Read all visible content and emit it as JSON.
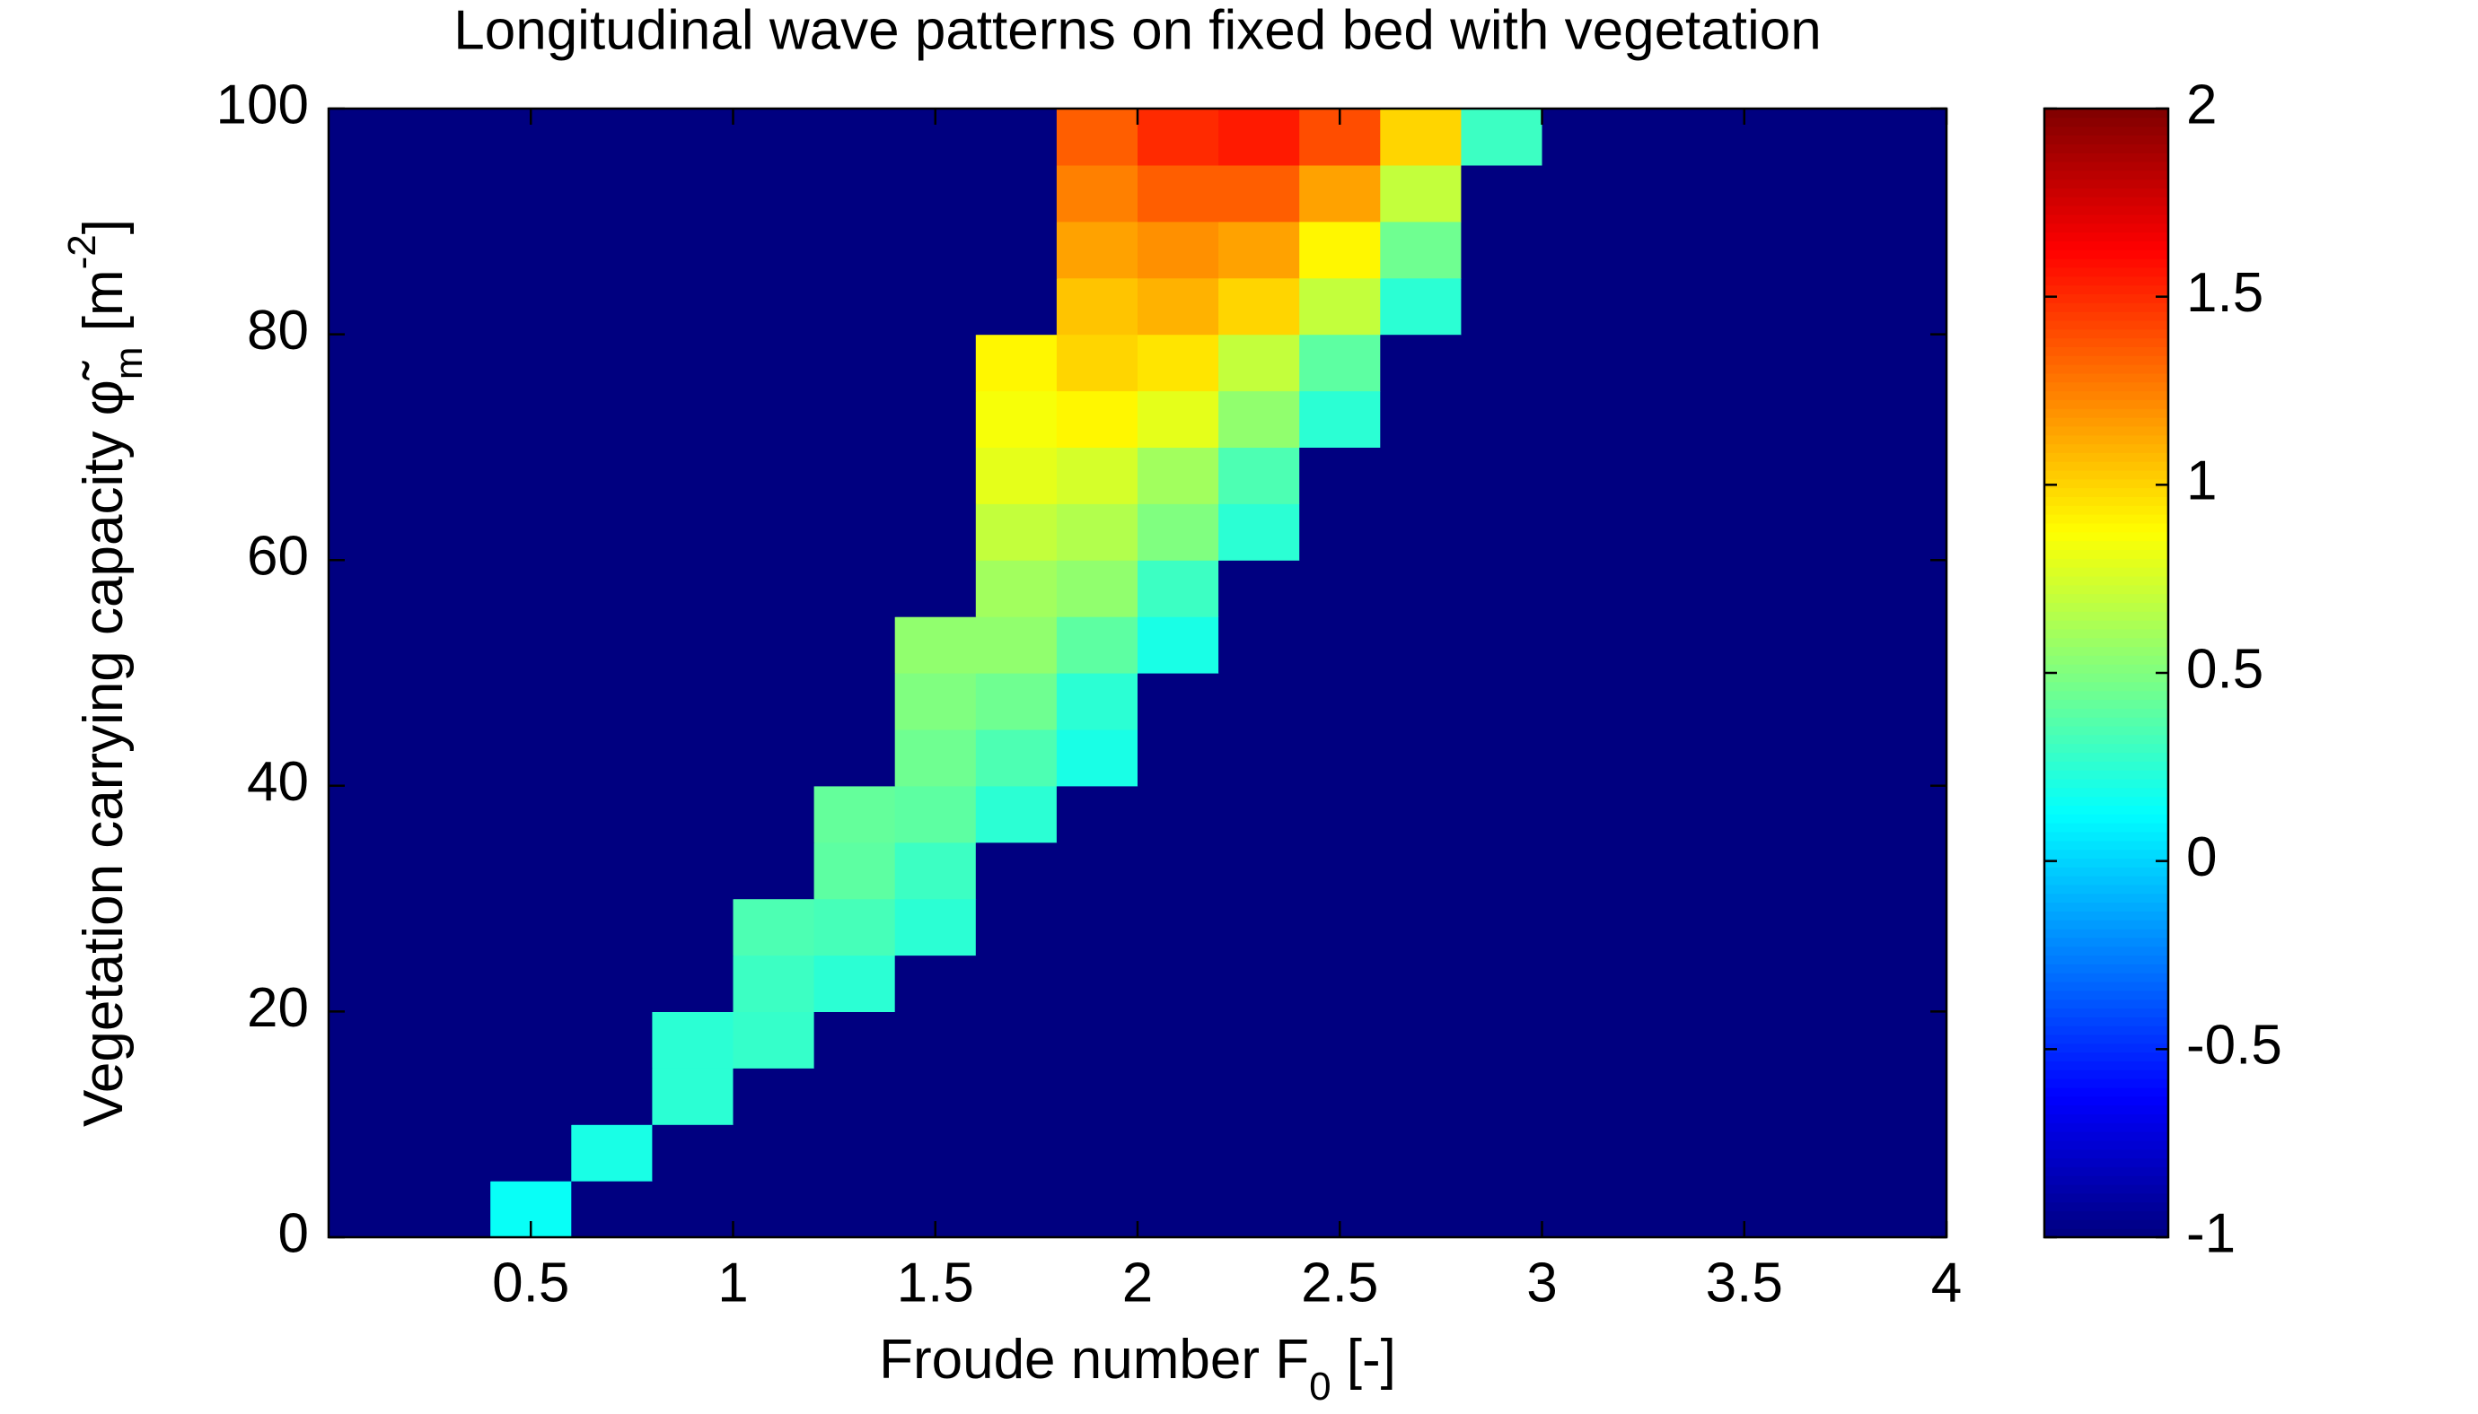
{
  "chart_data": {
    "type": "heatmap",
    "title": "Longitudinal wave patterns on fixed bed with vegetation",
    "xlabel": [
      "Froude number  F",
      "0",
      " [-]"
    ],
    "ylabel": [
      "Vegetation carrying capacity  φ̃",
      "m",
      " [m",
      "-2",
      "]"
    ],
    "x": [
      0.1,
      0.3,
      0.5,
      0.7,
      0.9,
      1.1,
      1.3,
      1.5,
      1.7,
      1.9,
      2.1,
      2.3,
      2.5,
      2.7,
      2.9,
      3.1,
      3.3,
      3.5,
      3.7,
      3.9
    ],
    "y": [
      2.5,
      7.5,
      12.5,
      17.5,
      22.5,
      27.5,
      32.5,
      37.5,
      42.5,
      47.5,
      52.5,
      57.5,
      62.5,
      67.5,
      72.5,
      77.5,
      82.5,
      87.5,
      92.5,
      97.5
    ],
    "z": [
      [
        -1,
        -1,
        0.15,
        -1,
        -1,
        -1,
        -1,
        -1,
        -1,
        -1,
        -1,
        -1,
        -1,
        -1,
        -1,
        -1,
        -1,
        -1,
        -1,
        -1
      ],
      [
        -1,
        -1,
        -1,
        0.2,
        -1,
        -1,
        -1,
        -1,
        -1,
        -1,
        -1,
        -1,
        -1,
        -1,
        -1,
        -1,
        -1,
        -1,
        -1,
        -1
      ],
      [
        -1,
        -1,
        -1,
        -1,
        0.25,
        -1,
        -1,
        -1,
        -1,
        -1,
        -1,
        -1,
        -1,
        -1,
        -1,
        -1,
        -1,
        -1,
        -1,
        -1
      ],
      [
        -1,
        -1,
        -1,
        -1,
        0.25,
        0.28,
        -1,
        -1,
        -1,
        -1,
        -1,
        -1,
        -1,
        -1,
        -1,
        -1,
        -1,
        -1,
        -1,
        -1
      ],
      [
        -1,
        -1,
        -1,
        -1,
        -1,
        0.3,
        0.25,
        -1,
        -1,
        -1,
        -1,
        -1,
        -1,
        -1,
        -1,
        -1,
        -1,
        -1,
        -1,
        -1
      ],
      [
        -1,
        -1,
        -1,
        -1,
        -1,
        0.35,
        0.33,
        0.25,
        -1,
        -1,
        -1,
        -1,
        -1,
        -1,
        -1,
        -1,
        -1,
        -1,
        -1,
        -1
      ],
      [
        -1,
        -1,
        -1,
        -1,
        -1,
        -1,
        0.4,
        0.3,
        -1,
        -1,
        -1,
        -1,
        -1,
        -1,
        -1,
        -1,
        -1,
        -1,
        -1,
        -1
      ],
      [
        -1,
        -1,
        -1,
        -1,
        -1,
        -1,
        0.42,
        0.4,
        0.25,
        -1,
        -1,
        -1,
        -1,
        -1,
        -1,
        -1,
        -1,
        -1,
        -1,
        -1
      ],
      [
        -1,
        -1,
        -1,
        -1,
        -1,
        -1,
        -1,
        0.45,
        0.35,
        0.2,
        -1,
        -1,
        -1,
        -1,
        -1,
        -1,
        -1,
        -1,
        -1,
        -1
      ],
      [
        -1,
        -1,
        -1,
        -1,
        -1,
        -1,
        -1,
        0.5,
        0.45,
        0.25,
        -1,
        -1,
        -1,
        -1,
        -1,
        -1,
        -1,
        -1,
        -1,
        -1
      ],
      [
        -1,
        -1,
        -1,
        -1,
        -1,
        -1,
        -1,
        0.55,
        0.55,
        0.4,
        0.2,
        -1,
        -1,
        -1,
        -1,
        -1,
        -1,
        -1,
        -1,
        -1
      ],
      [
        -1,
        -1,
        -1,
        -1,
        -1,
        -1,
        -1,
        -1,
        0.6,
        0.55,
        0.3,
        -1,
        -1,
        -1,
        -1,
        -1,
        -1,
        -1,
        -1,
        -1
      ],
      [
        -1,
        -1,
        -1,
        -1,
        -1,
        -1,
        -1,
        -1,
        0.7,
        0.65,
        0.5,
        0.25,
        -1,
        -1,
        -1,
        -1,
        -1,
        -1,
        -1,
        -1
      ],
      [
        -1,
        -1,
        -1,
        -1,
        -1,
        -1,
        -1,
        -1,
        0.8,
        0.75,
        0.6,
        0.35,
        -1,
        -1,
        -1,
        -1,
        -1,
        -1,
        -1,
        -1
      ],
      [
        -1,
        -1,
        -1,
        -1,
        -1,
        -1,
        -1,
        -1,
        0.85,
        0.9,
        0.8,
        0.55,
        0.25,
        -1,
        -1,
        -1,
        -1,
        -1,
        -1,
        -1
      ],
      [
        -1,
        -1,
        -1,
        -1,
        -1,
        -1,
        -1,
        -1,
        0.9,
        1.0,
        0.95,
        0.7,
        0.4,
        -1,
        -1,
        -1,
        -1,
        -1,
        -1,
        -1
      ],
      [
        -1,
        -1,
        -1,
        -1,
        -1,
        -1,
        -1,
        -1,
        -1,
        1.05,
        1.1,
        1.0,
        0.7,
        0.25,
        -1,
        -1,
        -1,
        -1,
        -1,
        -1
      ],
      [
        -1,
        -1,
        -1,
        -1,
        -1,
        -1,
        -1,
        -1,
        -1,
        1.15,
        1.2,
        1.15,
        0.9,
        0.45,
        -1,
        -1,
        -1,
        -1,
        -1,
        -1
      ],
      [
        -1,
        -1,
        -1,
        -1,
        -1,
        -1,
        -1,
        -1,
        -1,
        1.25,
        1.35,
        1.35,
        1.15,
        0.7,
        -1,
        -1,
        -1,
        -1,
        -1,
        -1
      ],
      [
        -1,
        -1,
        -1,
        -1,
        -1,
        -1,
        -1,
        -1,
        -1,
        1.35,
        1.5,
        1.55,
        1.4,
        1.0,
        0.3,
        -1,
        -1,
        -1,
        -1,
        -1
      ]
    ],
    "xlim": [
      0,
      4
    ],
    "xticks": [
      0.5,
      1,
      1.5,
      2,
      2.5,
      3,
      3.5,
      4
    ],
    "ylim": [
      0,
      100
    ],
    "yticks": [
      0,
      20,
      40,
      60,
      80,
      100
    ],
    "colormap": "jet",
    "clim": [
      -1,
      2
    ],
    "cticks": [
      -1,
      -0.5,
      0,
      0.5,
      1,
      1.5,
      2
    ]
  }
}
